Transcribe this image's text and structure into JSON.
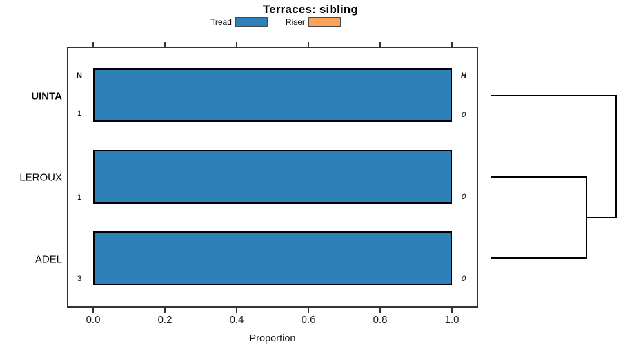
{
  "title": "Terraces: sibling",
  "legend": {
    "items": [
      {
        "label": "Tread",
        "color": "#2E80B9"
      },
      {
        "label": "Riser",
        "color": "#F8A35C"
      }
    ]
  },
  "axis": {
    "xlabel": "Proportion",
    "tick_labels": [
      "0.0",
      "0.2",
      "0.4",
      "0.6",
      "0.8",
      "1.0"
    ]
  },
  "table": {
    "n_header": "N",
    "h_header": "H"
  },
  "rows": [
    {
      "label": "UINTA",
      "n": "1",
      "h": "0"
    },
    {
      "label": "LEROUX",
      "n": "1",
      "h": "0"
    },
    {
      "label": "ADEL",
      "n": "3",
      "h": "0"
    }
  ],
  "chart_data": {
    "type": "bar",
    "orientation": "horizontal",
    "stacked": true,
    "title": "Terraces: sibling",
    "xlabel": "Proportion",
    "xlim": [
      0,
      1
    ],
    "x_ticks": [
      0.0,
      0.2,
      0.4,
      0.6,
      0.8,
      1.0
    ],
    "grid": false,
    "legend_position": "top",
    "categories": [
      "UINTA",
      "LEROUX",
      "ADEL"
    ],
    "series": [
      {
        "name": "Tread",
        "color": "#2E80B9",
        "values": [
          1.0,
          1.0,
          1.0
        ]
      },
      {
        "name": "Riser",
        "color": "#F8A35C",
        "values": [
          0.0,
          0.0,
          0.0
        ]
      }
    ],
    "annotations": {
      "N": [
        1,
        1,
        3
      ],
      "H": [
        0,
        0,
        0
      ]
    },
    "dendrogram": {
      "side": "right",
      "leaves": [
        "UINTA",
        "LEROUX",
        "ADEL"
      ],
      "structure": "((LEROUX,ADEL),UINTA)"
    }
  }
}
